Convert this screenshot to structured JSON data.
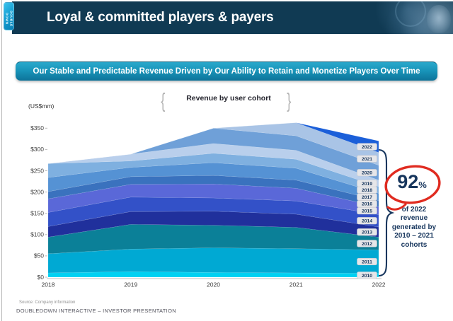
{
  "header": {
    "title": "Loyal & committed players & payers",
    "logo_lines": [
      "DOUBLE",
      "DOWN"
    ]
  },
  "banner": {
    "text": "Our Stable and Predictable Revenue Driven by Our Ability to Retain and Monetize Players Over Time"
  },
  "chart": {
    "units_label": "(US$mm)",
    "title": "Revenue by user cohort",
    "left_brace": "{",
    "right_brace": "}"
  },
  "annotation": {
    "percent_value": "92",
    "percent_sign": "%",
    "lines": [
      "of 2022",
      "revenue",
      "generated by",
      "2010 – 2021",
      "cohorts"
    ]
  },
  "footer": {
    "source": "Source: Company information",
    "deck_title": "DOUBLEDOWN INTERACTIVE – INVESTOR PRESENTATION"
  },
  "colors": {
    "header_bg": "#103a53",
    "banner_top": "#2aa9cc",
    "banner_bottom": "#0d7399",
    "accent_navy": "#17365d",
    "annotation_red": "#e02b20",
    "axis_text": "#404040",
    "chip_bg": "#e6e6e9",
    "chip_border": "#c8c8cc"
  },
  "chart_data": {
    "type": "area",
    "stacked": true,
    "title": "Revenue by user cohort",
    "ylabel": "(US$mm)",
    "x": [
      2018,
      2019,
      2020,
      2021,
      2022
    ],
    "ylim": [
      0,
      350
    ],
    "y_ticks": [
      "$0",
      "$50",
      "$100",
      "$150",
      "$200",
      "$250",
      "$300",
      "$350"
    ],
    "grid": false,
    "legend_position": "right-edge-inline-labels",
    "series": [
      {
        "name": "2010",
        "color": "#00d1f2",
        "values": [
          10,
          13,
          11,
          10,
          9
        ]
      },
      {
        "name": "2011",
        "color": "#00a9d3",
        "values": [
          45,
          53,
          58,
          57,
          55
        ]
      },
      {
        "name": "2012",
        "color": "#0b8098",
        "values": [
          39,
          58,
          53,
          50,
          30
        ]
      },
      {
        "name": "2013",
        "color": "#20309c",
        "values": [
          25,
          30,
          33,
          31,
          24
        ]
      },
      {
        "name": "2014",
        "color": "#3351c8",
        "values": [
          33,
          34,
          31,
          31,
          29
        ]
      },
      {
        "name": "2015",
        "color": "#5a68d8",
        "values": [
          32,
          30,
          33,
          30,
          18
        ]
      },
      {
        "name": "2016",
        "color": "#3a72be",
        "values": [
          17,
          18,
          20,
          19,
          15
        ]
      },
      {
        "name": "2017",
        "color": "#5592d4",
        "values": [
          33,
          22,
          30,
          28,
          17
        ]
      },
      {
        "name": "2018",
        "color": "#7fb0e0",
        "values": [
          33,
          15,
          22,
          21,
          16
        ]
      },
      {
        "name": "2019",
        "color": "#b9cfec",
        "values": [
          0,
          16,
          23,
          21,
          15
        ]
      },
      {
        "name": "2020",
        "color": "#6fa0d8",
        "values": [
          0,
          0,
          36,
          34,
          35
        ]
      },
      {
        "name": "2021",
        "color": "#a9c4e6",
        "values": [
          0,
          0,
          0,
          31,
          30
        ]
      },
      {
        "name": "2022",
        "color": "#1b5fd9",
        "values": [
          0,
          0,
          0,
          0,
          27
        ]
      }
    ],
    "totals": [
      267,
      289,
      350,
      363,
      320
    ]
  }
}
